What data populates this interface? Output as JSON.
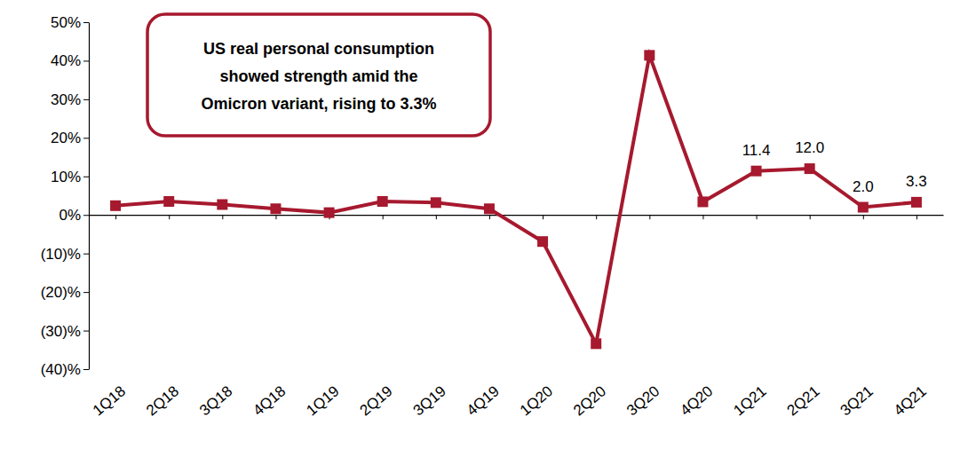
{
  "chart_data": {
    "type": "line",
    "annotation": [
      "US real personal consumption",
      "showed strength amid the",
      "Omicron variant, rising to 3.3%"
    ],
    "categories": [
      "1Q18",
      "2Q18",
      "3Q18",
      "4Q18",
      "1Q19",
      "2Q19",
      "3Q19",
      "4Q19",
      "1Q20",
      "2Q20",
      "3Q20",
      "4Q20",
      "1Q21",
      "2Q21",
      "3Q21",
      "4Q21"
    ],
    "values": [
      2.4,
      3.5,
      2.7,
      1.6,
      0.6,
      3.5,
      3.2,
      1.6,
      -6.9,
      -33.4,
      41.4,
      3.4,
      11.4,
      12.0,
      2.0,
      3.3
    ],
    "value_labels": [
      null,
      null,
      null,
      null,
      null,
      null,
      null,
      null,
      null,
      null,
      null,
      null,
      "11.4",
      "12.0",
      "2.0",
      "3.3"
    ],
    "data_labels": true,
    "color": "#a6192e",
    "marker": "square",
    "line_style": "solid",
    "grid": false,
    "ylim": [
      -40,
      50
    ],
    "yticks": [
      {
        "value": -40,
        "label": "(40)%"
      },
      {
        "value": -30,
        "label": "(30)%"
      },
      {
        "value": -20,
        "label": "(20)%"
      },
      {
        "value": -10,
        "label": "(10)%"
      },
      {
        "value": 0,
        "label": "0%"
      },
      {
        "value": 10,
        "label": "10%"
      },
      {
        "value": 20,
        "label": "20%"
      },
      {
        "value": 30,
        "label": "30%"
      },
      {
        "value": 40,
        "label": "40%"
      },
      {
        "value": 50,
        "label": "50%"
      }
    ]
  }
}
